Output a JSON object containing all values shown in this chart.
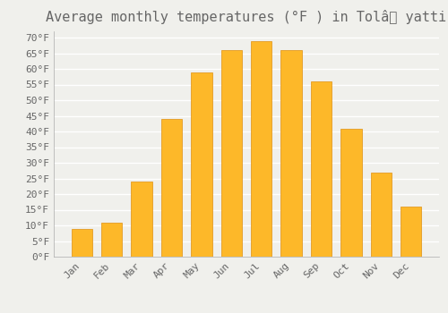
{
  "title": "Average monthly temperatures (°F ) in Tolâ yatti",
  "months": [
    "Jan",
    "Feb",
    "Mar",
    "Apr",
    "May",
    "Jun",
    "Jul",
    "Aug",
    "Sep",
    "Oct",
    "Nov",
    "Dec"
  ],
  "values": [
    9,
    11,
    24,
    44,
    59,
    66,
    69,
    66,
    56,
    41,
    27,
    16
  ],
  "bar_color": "#FDB829",
  "bar_edge_color": "#E09010",
  "background_color": "#F0F0EC",
  "grid_color": "#FFFFFF",
  "text_color": "#666666",
  "ylim": [
    0,
    72
  ],
  "yticks": [
    0,
    5,
    10,
    15,
    20,
    25,
    30,
    35,
    40,
    45,
    50,
    55,
    60,
    65,
    70
  ],
  "ylabel_suffix": "°F",
  "title_fontsize": 11,
  "tick_fontsize": 8,
  "font_family": "monospace"
}
